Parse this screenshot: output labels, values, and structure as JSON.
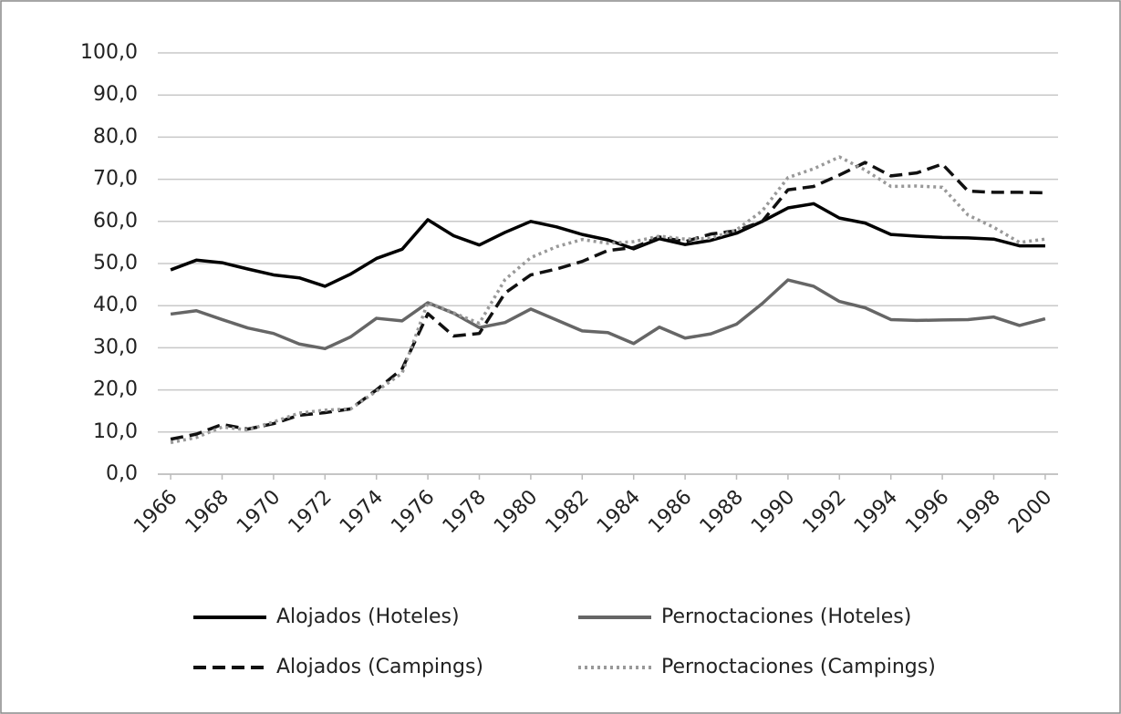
{
  "chart_data": {
    "type": "line",
    "x": [
      1966,
      1967,
      1968,
      1969,
      1970,
      1971,
      1972,
      1973,
      1974,
      1975,
      1976,
      1977,
      1978,
      1979,
      1980,
      1981,
      1982,
      1983,
      1984,
      1985,
      1986,
      1987,
      1988,
      1989,
      1990,
      1991,
      1992,
      1993,
      1994,
      1995,
      1996,
      1997,
      1998,
      1999,
      2000
    ],
    "xlim": [
      1965.5,
      2000.5
    ],
    "xticks": [
      1966,
      1968,
      1970,
      1972,
      1974,
      1976,
      1978,
      1980,
      1982,
      1984,
      1986,
      1988,
      1990,
      1992,
      1994,
      1996,
      1998,
      2000
    ],
    "ylim": [
      0,
      100
    ],
    "yticks": [
      {
        "value": 0,
        "label": "0,0"
      },
      {
        "value": 10,
        "label": "10,0"
      },
      {
        "value": 20,
        "label": "20,0"
      },
      {
        "value": 30,
        "label": "30,0"
      },
      {
        "value": 40,
        "label": "40,0"
      },
      {
        "value": 50,
        "label": "50,0"
      },
      {
        "value": 60,
        "label": "60,0"
      },
      {
        "value": 70,
        "label": "70,0"
      },
      {
        "value": 80,
        "label": "80,0"
      },
      {
        "value": 90,
        "label": "90,0"
      },
      {
        "value": 100,
        "label": "100,0"
      }
    ],
    "grid": true,
    "legend": "bottom",
    "series": [
      {
        "name": "Alojados (Hoteles)",
        "color": "#000000",
        "style": "solid",
        "values": [
          48.5,
          50.8,
          50.2,
          48.7,
          47.3,
          46.6,
          44.6,
          47.5,
          51.2,
          53.4,
          60.4,
          56.6,
          54.4,
          57.4,
          60.0,
          58.7,
          56.9,
          55.6,
          53.5,
          55.9,
          54.5,
          55.5,
          57.2,
          60.0,
          63.2,
          64.2,
          60.8,
          59.6,
          56.9,
          56.5,
          56.2,
          56.1,
          55.8,
          54.2,
          54.2
        ]
      },
      {
        "name": "Pernoctaciones (Hoteles)",
        "color": "#666666",
        "style": "solid",
        "values": [
          38.0,
          38.8,
          36.7,
          34.7,
          33.4,
          30.9,
          29.8,
          32.6,
          37.0,
          36.4,
          40.7,
          38.2,
          34.8,
          36.0,
          39.2,
          36.6,
          34.0,
          33.6,
          31.0,
          34.9,
          32.3,
          33.3,
          35.6,
          40.5,
          46.1,
          44.6,
          41.0,
          39.5,
          36.7,
          36.5,
          36.6,
          36.7,
          37.3,
          35.3,
          36.9
        ]
      },
      {
        "name": "Alojados (Campings)",
        "color": "#111111",
        "style": "dashed",
        "values": [
          8.3,
          9.5,
          11.8,
          10.7,
          12.0,
          14.0,
          14.6,
          15.5,
          20.0,
          25.0,
          38.1,
          32.8,
          33.4,
          43.0,
          47.3,
          48.7,
          50.5,
          53.1,
          53.8,
          56.3,
          55.2,
          57.0,
          57.8,
          60.0,
          67.5,
          68.3,
          71.0,
          74.0,
          70.8,
          71.5,
          73.6,
          67.2,
          66.9,
          66.9,
          66.8
        ]
      },
      {
        "name": "Pernoctaciones (Campings)",
        "color": "#999999",
        "style": "dotted",
        "values": [
          7.5,
          8.7,
          11.2,
          10.5,
          12.4,
          14.5,
          15.2,
          15.5,
          19.7,
          24.0,
          40.8,
          38.3,
          35.8,
          46.2,
          51.4,
          54.0,
          55.7,
          54.8,
          55.2,
          56.5,
          55.8,
          56.0,
          58.0,
          62.5,
          70.4,
          72.5,
          75.3,
          72.2,
          68.3,
          68.4,
          68.1,
          61.5,
          58.6,
          55.0,
          55.8
        ]
      }
    ]
  }
}
